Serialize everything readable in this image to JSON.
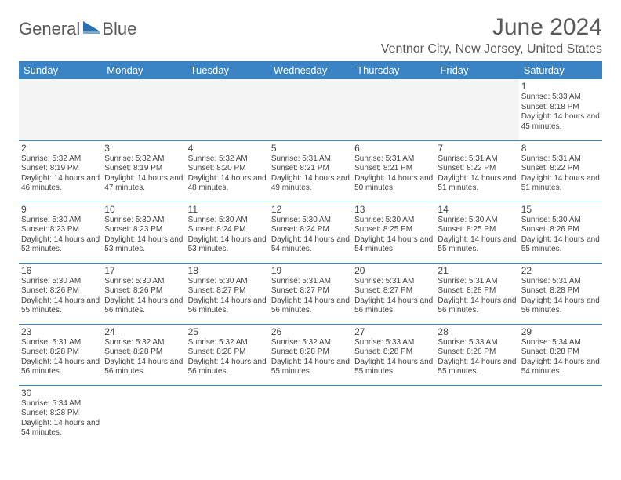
{
  "logo": {
    "text_left": "General",
    "text_right": "Blue"
  },
  "title": "June 2024",
  "location": "Ventnor City, New Jersey, United States",
  "colors": {
    "header_bg": "#3a83c4",
    "header_text": "#ffffff",
    "border": "#3a83c4",
    "text": "#444444",
    "subtext": "#5a5a5a",
    "logo_accent": "#2a6fb0"
  },
  "weekdays": [
    "Sunday",
    "Monday",
    "Tuesday",
    "Wednesday",
    "Thursday",
    "Friday",
    "Saturday"
  ],
  "cells": [
    [
      null,
      null,
      null,
      null,
      null,
      null,
      {
        "n": "1",
        "sr": "5:33 AM",
        "ss": "8:18 PM",
        "dl": "14 hours and 45 minutes."
      }
    ],
    [
      {
        "n": "2",
        "sr": "5:32 AM",
        "ss": "8:19 PM",
        "dl": "14 hours and 46 minutes."
      },
      {
        "n": "3",
        "sr": "5:32 AM",
        "ss": "8:19 PM",
        "dl": "14 hours and 47 minutes."
      },
      {
        "n": "4",
        "sr": "5:32 AM",
        "ss": "8:20 PM",
        "dl": "14 hours and 48 minutes."
      },
      {
        "n": "5",
        "sr": "5:31 AM",
        "ss": "8:21 PM",
        "dl": "14 hours and 49 minutes."
      },
      {
        "n": "6",
        "sr": "5:31 AM",
        "ss": "8:21 PM",
        "dl": "14 hours and 50 minutes."
      },
      {
        "n": "7",
        "sr": "5:31 AM",
        "ss": "8:22 PM",
        "dl": "14 hours and 51 minutes."
      },
      {
        "n": "8",
        "sr": "5:31 AM",
        "ss": "8:22 PM",
        "dl": "14 hours and 51 minutes."
      }
    ],
    [
      {
        "n": "9",
        "sr": "5:30 AM",
        "ss": "8:23 PM",
        "dl": "14 hours and 52 minutes."
      },
      {
        "n": "10",
        "sr": "5:30 AM",
        "ss": "8:23 PM",
        "dl": "14 hours and 53 minutes."
      },
      {
        "n": "11",
        "sr": "5:30 AM",
        "ss": "8:24 PM",
        "dl": "14 hours and 53 minutes."
      },
      {
        "n": "12",
        "sr": "5:30 AM",
        "ss": "8:24 PM",
        "dl": "14 hours and 54 minutes."
      },
      {
        "n": "13",
        "sr": "5:30 AM",
        "ss": "8:25 PM",
        "dl": "14 hours and 54 minutes."
      },
      {
        "n": "14",
        "sr": "5:30 AM",
        "ss": "8:25 PM",
        "dl": "14 hours and 55 minutes."
      },
      {
        "n": "15",
        "sr": "5:30 AM",
        "ss": "8:26 PM",
        "dl": "14 hours and 55 minutes."
      }
    ],
    [
      {
        "n": "16",
        "sr": "5:30 AM",
        "ss": "8:26 PM",
        "dl": "14 hours and 55 minutes."
      },
      {
        "n": "17",
        "sr": "5:30 AM",
        "ss": "8:26 PM",
        "dl": "14 hours and 56 minutes."
      },
      {
        "n": "18",
        "sr": "5:30 AM",
        "ss": "8:27 PM",
        "dl": "14 hours and 56 minutes."
      },
      {
        "n": "19",
        "sr": "5:31 AM",
        "ss": "8:27 PM",
        "dl": "14 hours and 56 minutes."
      },
      {
        "n": "20",
        "sr": "5:31 AM",
        "ss": "8:27 PM",
        "dl": "14 hours and 56 minutes."
      },
      {
        "n": "21",
        "sr": "5:31 AM",
        "ss": "8:28 PM",
        "dl": "14 hours and 56 minutes."
      },
      {
        "n": "22",
        "sr": "5:31 AM",
        "ss": "8:28 PM",
        "dl": "14 hours and 56 minutes."
      }
    ],
    [
      {
        "n": "23",
        "sr": "5:31 AM",
        "ss": "8:28 PM",
        "dl": "14 hours and 56 minutes."
      },
      {
        "n": "24",
        "sr": "5:32 AM",
        "ss": "8:28 PM",
        "dl": "14 hours and 56 minutes."
      },
      {
        "n": "25",
        "sr": "5:32 AM",
        "ss": "8:28 PM",
        "dl": "14 hours and 56 minutes."
      },
      {
        "n": "26",
        "sr": "5:32 AM",
        "ss": "8:28 PM",
        "dl": "14 hours and 55 minutes."
      },
      {
        "n": "27",
        "sr": "5:33 AM",
        "ss": "8:28 PM",
        "dl": "14 hours and 55 minutes."
      },
      {
        "n": "28",
        "sr": "5:33 AM",
        "ss": "8:28 PM",
        "dl": "14 hours and 55 minutes."
      },
      {
        "n": "29",
        "sr": "5:34 AM",
        "ss": "8:28 PM",
        "dl": "14 hours and 54 minutes."
      }
    ],
    [
      {
        "n": "30",
        "sr": "5:34 AM",
        "ss": "8:28 PM",
        "dl": "14 hours and 54 minutes."
      },
      null,
      null,
      null,
      null,
      null,
      null
    ]
  ],
  "labels": {
    "sunrise": "Sunrise:",
    "sunset": "Sunset:",
    "daylight": "Daylight:"
  }
}
